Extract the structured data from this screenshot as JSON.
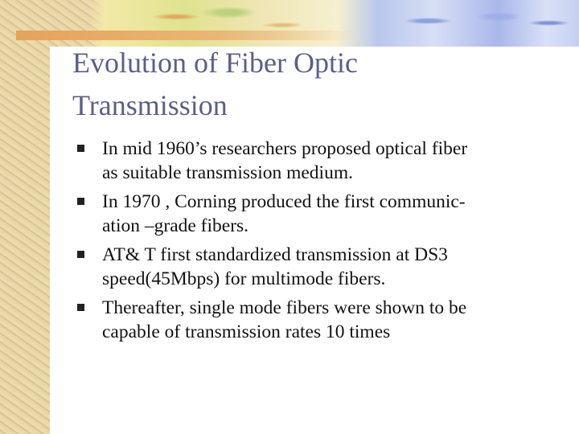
{
  "slide": {
    "title": [
      "Evolution of Fiber Optic",
      "Transmission"
    ],
    "bullets": [
      [
        "In mid 1960’s researchers proposed optical fiber",
        "as suitable transmission medium."
      ],
      [
        "In 1970 , Corning produced the first communic-",
        "ation –grade fibers."
      ],
      [
        "AT& T first standardized transmission at DS3",
        "speed(45Mbps) for multimode fibers."
      ],
      [
        "Thereafter, single mode fibers were shown to be",
        "capable of transmission rates 10 times"
      ]
    ]
  }
}
